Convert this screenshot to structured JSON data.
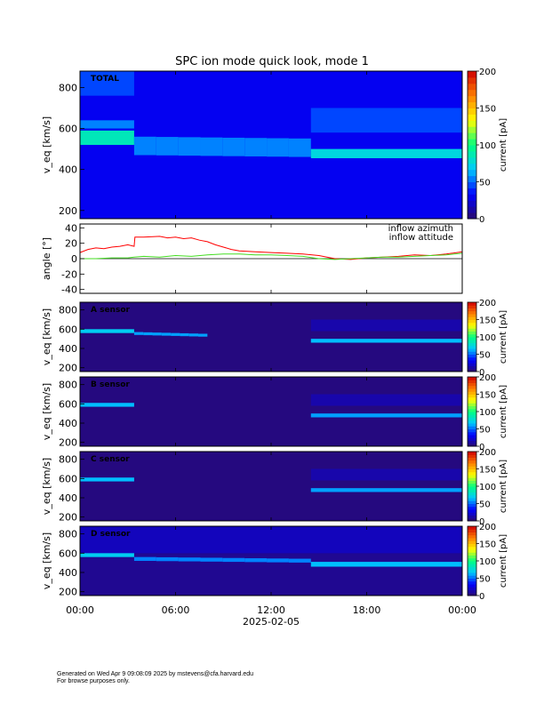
{
  "figure": {
    "title": "SPC ion mode quick look, mode 1",
    "footer_line1": "Generated on Wed Apr  9 09:08:09 2025 by mstevens@cfa.harvard.edu",
    "footer_line2": "For browse purposes only."
  },
  "colors": {
    "background": "#ffffff",
    "azimuth": "#ff0000",
    "attitude": "#44dd22",
    "colormap": [
      "#2a0a6e",
      "#0000ff",
      "#00c8ff",
      "#00ff80",
      "#ffff00",
      "#ff8000",
      "#d00000"
    ]
  },
  "chart_data": [
    {
      "type": "heatmap",
      "label": "TOTAL",
      "ylabel": "v_eq [km/s]",
      "ylim": [
        160,
        880
      ],
      "yticks": [
        200,
        400,
        600,
        800
      ],
      "xlim_hours": [
        0,
        24
      ],
      "colorbar": {
        "label": "current [pA]",
        "range": [
          0,
          200
        ],
        "ticks": [
          0,
          50,
          100,
          150,
          200
        ]
      },
      "background_level": 30,
      "features": [
        {
          "t": [
            0,
            3.4
          ],
          "v": [
            520,
            590
          ],
          "level": 85
        },
        {
          "t": [
            0,
            3.4
          ],
          "v": [
            600,
            640
          ],
          "level": 55
        },
        {
          "t": [
            3.4,
            14.5
          ],
          "v": [
            470,
            560
          ],
          "level": 55,
          "drift_to": 460
        },
        {
          "t": [
            14.5,
            24
          ],
          "v": [
            455,
            500
          ],
          "level": 75
        },
        {
          "t": [
            14.5,
            24
          ],
          "v": [
            580,
            700
          ],
          "level": 45
        },
        {
          "t": [
            0,
            3.4
          ],
          "v": [
            760,
            880
          ],
          "level": 45
        }
      ]
    },
    {
      "type": "line",
      "ylabel": "angle [°]",
      "ylim": [
        -45,
        45
      ],
      "yticks": [
        -40,
        -20,
        0,
        20,
        40
      ],
      "xlim_hours": [
        0,
        24
      ],
      "series": [
        {
          "name": "inflow azimuth",
          "color": "#ff0000",
          "x": [
            0,
            0.5,
            1,
            1.5,
            2,
            2.5,
            3,
            3.4,
            3.45,
            4,
            5,
            5.5,
            6,
            6.5,
            7,
            7.5,
            8,
            8.5,
            9,
            9.5,
            10,
            11,
            12,
            13,
            14,
            15,
            16,
            17,
            18,
            19,
            20,
            21,
            22,
            23,
            24
          ],
          "y": [
            8,
            12,
            14,
            13,
            15,
            16,
            18,
            16,
            28,
            28,
            29,
            27,
            28,
            26,
            27,
            24,
            22,
            18,
            15,
            12,
            10,
            9,
            8,
            7,
            6,
            4,
            0,
            -1,
            1,
            2,
            3,
            5,
            4,
            6,
            9
          ]
        },
        {
          "name": "inflow attitude",
          "color": "#44dd22",
          "x": [
            0,
            1,
            2,
            3,
            3.4,
            4,
            5,
            6,
            7,
            8,
            9,
            10,
            11,
            12,
            13,
            14,
            15,
            16,
            17,
            18,
            19,
            20,
            21,
            22,
            23,
            24
          ],
          "y": [
            0,
            0,
            1,
            1,
            2,
            3,
            2,
            4,
            3,
            5,
            6,
            6,
            5,
            5,
            4,
            3,
            0,
            -1,
            0,
            1,
            2,
            2,
            3,
            4,
            5,
            7
          ]
        }
      ]
    },
    {
      "type": "heatmap",
      "label": "A sensor",
      "ylabel": "v_eq [km/s]",
      "ylim": [
        160,
        880
      ],
      "yticks": [
        200,
        400,
        600,
        800
      ],
      "xlim_hours": [
        0,
        24
      ],
      "colorbar": {
        "label": "current [pA]",
        "range": [
          0,
          200
        ],
        "ticks": [
          0,
          50,
          100,
          150,
          200
        ]
      },
      "background_level": 4,
      "features": [
        {
          "t": [
            0,
            3.4
          ],
          "v": [
            560,
            600
          ],
          "level": 70
        },
        {
          "t": [
            3.4,
            8
          ],
          "v": [
            540,
            570
          ],
          "level": 60,
          "drift_to": 520
        },
        {
          "t": [
            14.5,
            24
          ],
          "v": [
            460,
            500
          ],
          "level": 65
        },
        {
          "t": [
            14.5,
            24
          ],
          "v": [
            580,
            700
          ],
          "level": 14
        }
      ]
    },
    {
      "type": "heatmap",
      "label": "B sensor",
      "ylabel": "v_eq [km/s]",
      "ylim": [
        160,
        880
      ],
      "yticks": [
        200,
        400,
        600,
        800
      ],
      "xlim_hours": [
        0,
        24
      ],
      "colorbar": {
        "label": "current [pA]",
        "range": [
          0,
          200
        ],
        "ticks": [
          0,
          50,
          100,
          150,
          200
        ]
      },
      "background_level": 4,
      "features": [
        {
          "t": [
            0,
            3.4
          ],
          "v": [
            570,
            610
          ],
          "level": 65
        },
        {
          "t": [
            14.5,
            24
          ],
          "v": [
            460,
            500
          ],
          "level": 60
        },
        {
          "t": [
            14.5,
            24
          ],
          "v": [
            580,
            700
          ],
          "level": 14
        }
      ]
    },
    {
      "type": "heatmap",
      "label": "C sensor",
      "ylabel": "v_eq [km/s]",
      "ylim": [
        160,
        880
      ],
      "yticks": [
        200,
        400,
        600,
        800
      ],
      "xlim_hours": [
        0,
        24
      ],
      "colorbar": {
        "label": "current [pA]",
        "range": [
          0,
          200
        ],
        "ticks": [
          0,
          50,
          100,
          150,
          200
        ]
      },
      "background_level": 4,
      "features": [
        {
          "t": [
            0,
            3.4
          ],
          "v": [
            570,
            610
          ],
          "level": 65
        },
        {
          "t": [
            14.5,
            24
          ],
          "v": [
            460,
            500
          ],
          "level": 60
        },
        {
          "t": [
            14.5,
            24
          ],
          "v": [
            580,
            700
          ],
          "level": 14
        }
      ]
    },
    {
      "type": "heatmap",
      "label": "D sensor",
      "ylabel": "v_eq [km/s]",
      "ylim": [
        160,
        880
      ],
      "yticks": [
        200,
        400,
        600,
        800
      ],
      "xlim_hours": [
        0,
        24
      ],
      "colorbar": {
        "label": "current [pA]",
        "range": [
          0,
          200
        ],
        "ticks": [
          0,
          50,
          100,
          150,
          200
        ]
      },
      "background_level": 8,
      "features": [
        {
          "t": [
            0,
            3.4
          ],
          "v": [
            560,
            610
          ],
          "level": 70
        },
        {
          "t": [
            3.4,
            14.5
          ],
          "v": [
            520,
            560
          ],
          "level": 55,
          "drift_to": 500
        },
        {
          "t": [
            14.5,
            24
          ],
          "v": [
            460,
            510
          ],
          "level": 65
        },
        {
          "t": [
            0,
            24
          ],
          "v": [
            600,
            880
          ],
          "level": 18
        }
      ]
    }
  ],
  "time_axis": {
    "ticks": [
      "00:00",
      "06:00",
      "12:00",
      "18:00",
      "00:00"
    ],
    "tick_hours": [
      0,
      6,
      12,
      18,
      24
    ],
    "date_label": "2025-02-05"
  }
}
